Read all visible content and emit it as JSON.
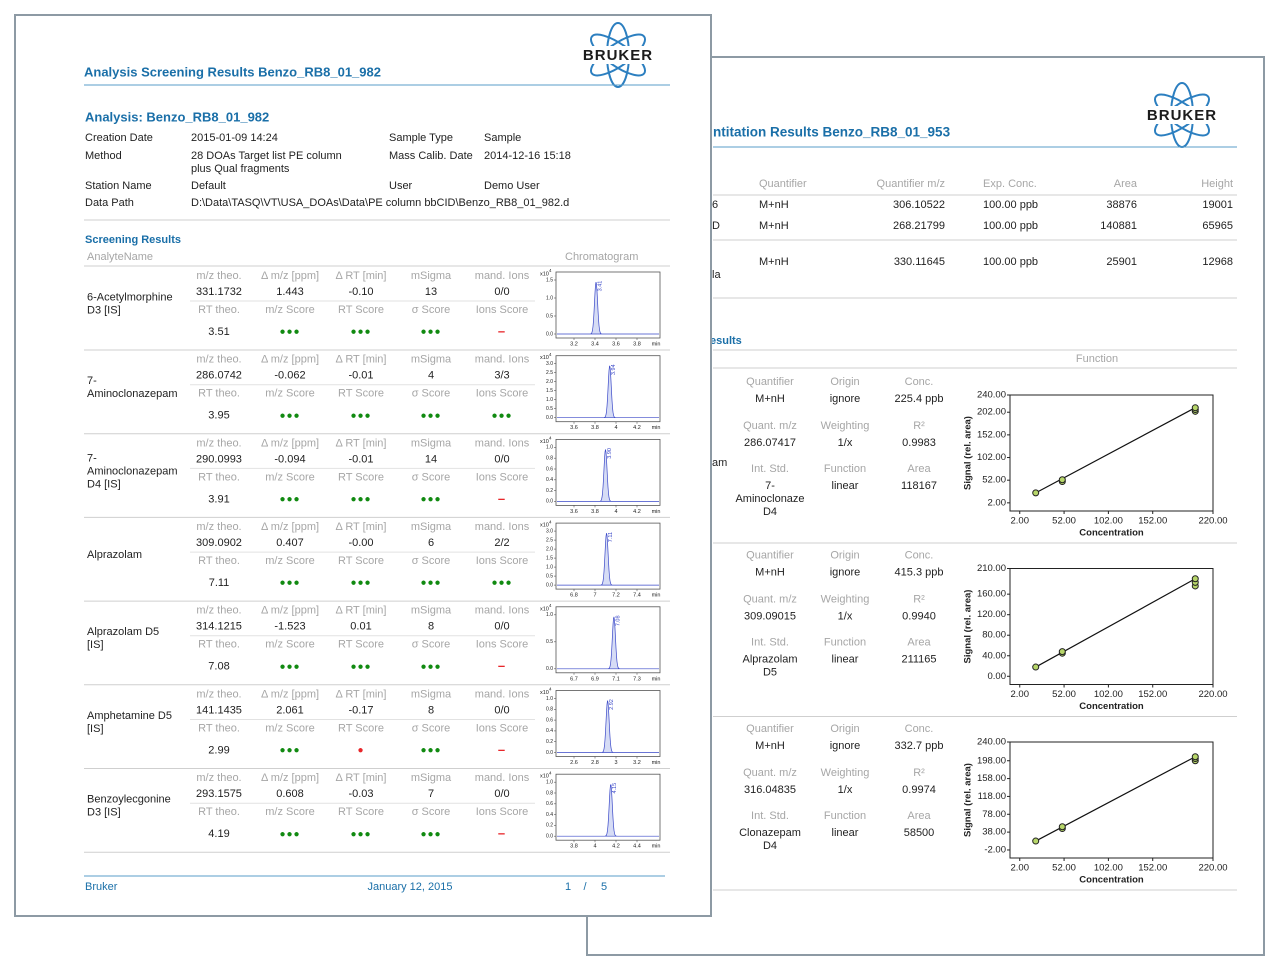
{
  "back_page": {
    "logo_text": "BRUKER",
    "title": "ntitation Results Benzo_RB8_01_953",
    "table": {
      "header": [
        "Quantifier",
        "Quantifier m/z",
        "Exp. Conc.",
        "Area",
        "Height"
      ],
      "rows": [
        {
          "name": "6",
          "cells": [
            "M+nH",
            "306.10522",
            "100.00 ppb",
            "38876",
            "19001"
          ]
        },
        {
          "name": "D",
          "cells": [
            "M+nH",
            "268.21799",
            "100.00 ppb",
            "140881",
            "65965"
          ]
        },
        {
          "name": "la",
          "cells": [
            "M+nH",
            "330.11645",
            "100.00 ppb",
            "25901",
            "12968"
          ]
        }
      ]
    },
    "section_title": "esults",
    "function_header": "Function",
    "calibrations": [
      {
        "name": "am",
        "fields": [
          [
            "Quantifier",
            "M+nH"
          ],
          [
            "Origin",
            "ignore"
          ],
          [
            "Conc.",
            "225.4 ppb"
          ],
          [
            "Quant. m/z",
            "286.07417"
          ],
          [
            "Weighting",
            "1/x"
          ],
          [
            "R²",
            "0.9983"
          ],
          [
            "Int. Std.",
            [
              "7-",
              "Aminoclonaze",
              "D4"
            ]
          ],
          [
            "Function",
            "linear"
          ],
          [
            "Area",
            "118167"
          ]
        ],
        "plot": {
          "x_label": "Concentration",
          "y_label": "Signal (rel. area)",
          "xlim": [
            -9,
            220
          ],
          "ylim": [
            -16,
            240
          ],
          "xticks": [
            {
              "value": 2,
              "label": "2.00"
            },
            {
              "value": 52,
              "label": "52.00"
            },
            {
              "value": 102,
              "label": "102.00"
            },
            {
              "value": 152,
              "label": "152.00"
            },
            {
              "value": 220,
              "label": "220.00"
            }
          ],
          "yticks": [
            {
              "value": 2,
              "label": "2.00"
            },
            {
              "value": 52,
              "label": "52.00"
            },
            {
              "value": 102,
              "label": "102.00"
            },
            {
              "value": 152,
              "label": "152.00"
            },
            {
              "value": 202,
              "label": "202.00"
            },
            {
              "value": 240,
              "label": "240.00"
            }
          ],
          "x": [
            20,
            50,
            50,
            200,
            200,
            200
          ],
          "y": [
            24,
            49,
            53,
            204,
            208,
            212
          ]
        }
      },
      {
        "fields": [
          [
            "Quantifier",
            "M+nH"
          ],
          [
            "Origin",
            "ignore"
          ],
          [
            "Conc.",
            "415.3 ppb"
          ],
          [
            "Quant. m/z",
            "309.09015"
          ],
          [
            "Weighting",
            "1/x"
          ],
          [
            "R²",
            "0.9940"
          ],
          [
            "Int. Std.",
            [
              "Alprazolam",
              "D5"
            ]
          ],
          [
            "Function",
            "linear"
          ],
          [
            "Area",
            "211165"
          ]
        ],
        "plot": {
          "x_label": "Concentration",
          "y_label": "Signal (rel. area)",
          "xlim": [
            -9,
            220
          ],
          "ylim": [
            -16,
            210
          ],
          "xticks": [
            {
              "value": 2,
              "label": "2.00"
            },
            {
              "value": 52,
              "label": "52.00"
            },
            {
              "value": 102,
              "label": "102.00"
            },
            {
              "value": 152,
              "label": "152.00"
            },
            {
              "value": 220,
              "label": "220.00"
            }
          ],
          "yticks": [
            {
              "value": 0,
              "label": "0.00"
            },
            {
              "value": 40,
              "label": "40.00"
            },
            {
              "value": 80,
              "label": "80.00"
            },
            {
              "value": 120,
              "label": "120.00"
            },
            {
              "value": 160,
              "label": "160.00"
            },
            {
              "value": 210,
              "label": "210.00"
            }
          ],
          "x": [
            20,
            50,
            50,
            200,
            200,
            200
          ],
          "y": [
            18,
            45,
            48,
            176,
            183,
            190
          ]
        }
      },
      {
        "fields": [
          [
            "Quantifier",
            "M+nH"
          ],
          [
            "Origin",
            "ignore"
          ],
          [
            "Conc.",
            "332.7 ppb"
          ],
          [
            "Quant. m/z",
            "316.04835"
          ],
          [
            "Weighting",
            "1/x"
          ],
          [
            "R²",
            "0.9974"
          ],
          [
            "Int. Std.",
            [
              "Clonazepam",
              "D4"
            ]
          ],
          [
            "Function",
            "linear"
          ],
          [
            "Area",
            "58500"
          ]
        ],
        "plot": {
          "x_label": "Concentration",
          "y_label": "Signal (rel. area)",
          "xlim": [
            -9,
            220
          ],
          "ylim": [
            -20,
            240
          ],
          "xticks": [
            {
              "value": 2,
              "label": "2.00"
            },
            {
              "value": 52,
              "label": "52.00"
            },
            {
              "value": 102,
              "label": "102.00"
            },
            {
              "value": 152,
              "label": "152.00"
            },
            {
              "value": 220,
              "label": "220.00"
            }
          ],
          "yticks": [
            {
              "value": -2,
              "label": "-2.00"
            },
            {
              "value": 38,
              "label": "38.00"
            },
            {
              "value": 78,
              "label": "78.00"
            },
            {
              "value": 118,
              "label": "118.00"
            },
            {
              "value": 158,
              "label": "158.00"
            },
            {
              "value": 198,
              "label": "198.00"
            },
            {
              "value": 240,
              "label": "240.00"
            }
          ],
          "x": [
            20,
            50,
            50,
            200,
            200,
            200
          ],
          "y": [
            18,
            46,
            50,
            198,
            203,
            207
          ]
        }
      }
    ]
  },
  "front_page": {
    "logo_text": "BRUKER",
    "title": "Analysis Screening Results Benzo_RB8_01_982",
    "analysis_title": "Analysis: Benzo_RB8_01_982",
    "info": [
      [
        "Creation Date",
        [
          "2015-01-09 14:24"
        ],
        "Sample Type",
        "Sample"
      ],
      [
        "Method",
        [
          "28 DOAs Target list PE column",
          "plus Qual fragments"
        ],
        "Mass Calib. Date",
        "2014-12-16 15:18"
      ],
      [
        "Station Name",
        [
          "Default"
        ],
        "User",
        "Demo User"
      ],
      [
        "Data Path",
        [
          "D:\\Data\\TASQ\\VT\\USA_DOAs\\Data\\PE column bbCID\\Benzo_RB8_01_982.d"
        ]
      ]
    ],
    "section_title": "Screening Results",
    "col_name": "AnalyteName",
    "col_chrom": "Chromatogram",
    "header_top": [
      "m/z theo.",
      "Δ m/z [ppm]",
      "Δ RT [min]",
      "mSigma",
      "mand. Ions"
    ],
    "header_bottom": [
      "RT theo.",
      "m/z Score",
      "RT Score",
      "σ Score",
      "Ions Score"
    ],
    "analytes": [
      {
        "name": [
          "6-Acetylmorphine",
          "D3 [IS]"
        ],
        "top": [
          "331.1732",
          "1.443",
          "-0.10",
          "13",
          "0/0"
        ],
        "rt_theo": "3.51",
        "scores": [
          {
            "symbol": "●●●",
            "color": "#118a11"
          },
          {
            "symbol": "●●●",
            "color": "#118a11"
          },
          {
            "symbol": "●●●",
            "color": "#118a11"
          },
          {
            "symbol": "–",
            "color": "#e8262a"
          }
        ],
        "chromatogram": {
          "scale": "x10",
          "exp": "4",
          "unit": "min",
          "peak": "3.41",
          "xticks": [
            "3.2",
            "3.4",
            "3.6",
            "3.8"
          ],
          "yticks": [
            "0.0",
            "0.5",
            "1.0",
            "1.5"
          ]
        }
      },
      {
        "name": [
          "7-",
          "Aminoclonazepam"
        ],
        "top": [
          "286.0742",
          "-0.062",
          "-0.01",
          "4",
          "3/3"
        ],
        "rt_theo": "3.95",
        "scores": [
          {
            "symbol": "●●●",
            "color": "#118a11"
          },
          {
            "symbol": "●●●",
            "color": "#118a11"
          },
          {
            "symbol": "●●●",
            "color": "#118a11"
          },
          {
            "symbol": "●●●",
            "color": "#118a11"
          }
        ],
        "chromatogram": {
          "scale": "x10",
          "exp": "4",
          "unit": "min",
          "peak": "3.94",
          "xticks": [
            "3.6",
            "3.8",
            "4",
            "4.2"
          ],
          "yticks": [
            "0.0",
            "0.5",
            "1.0",
            "1.5",
            "2.0",
            "2.5",
            "3.0"
          ]
        }
      },
      {
        "name": [
          "7-",
          "Aminoclonazepam",
          "D4 [IS]"
        ],
        "top": [
          "290.0993",
          "-0.094",
          "-0.01",
          "14",
          "0/0"
        ],
        "rt_theo": "3.91",
        "scores": [
          {
            "symbol": "●●●",
            "color": "#118a11"
          },
          {
            "symbol": "●●●",
            "color": "#118a11"
          },
          {
            "symbol": "●●●",
            "color": "#118a11"
          },
          {
            "symbol": "–",
            "color": "#e8262a"
          }
        ],
        "chromatogram": {
          "scale": "x10",
          "exp": "4",
          "unit": "min",
          "peak": "3.90",
          "xticks": [
            "3.6",
            "3.8",
            "4",
            "4.2"
          ],
          "yticks": [
            "0.0",
            "0.2",
            "0.4",
            "0.6",
            "0.8",
            "1.0"
          ]
        }
      },
      {
        "name": [
          "Alprazolam"
        ],
        "top": [
          "309.0902",
          "0.407",
          "-0.00",
          "6",
          "2/2"
        ],
        "rt_theo": "7.11",
        "scores": [
          {
            "symbol": "●●●",
            "color": "#118a11"
          },
          {
            "symbol": "●●●",
            "color": "#118a11"
          },
          {
            "symbol": "●●●",
            "color": "#118a11"
          },
          {
            "symbol": "●●●",
            "color": "#118a11"
          }
        ],
        "chromatogram": {
          "scale": "x10",
          "exp": "4",
          "unit": "min",
          "peak": "7.11",
          "xticks": [
            "6.8",
            "7",
            "7.2",
            "7.4"
          ],
          "yticks": [
            "0.0",
            "0.5",
            "1.0",
            "1.5",
            "2.0",
            "2.5",
            "3.0"
          ]
        }
      },
      {
        "name": [
          "Alprazolam D5",
          "[IS]"
        ],
        "top": [
          "314.1215",
          "-1.523",
          "0.01",
          "8",
          "0/0"
        ],
        "rt_theo": "7.08",
        "scores": [
          {
            "symbol": "●●●",
            "color": "#118a11"
          },
          {
            "symbol": "●●●",
            "color": "#118a11"
          },
          {
            "symbol": "●●●",
            "color": "#118a11"
          },
          {
            "symbol": "–",
            "color": "#e8262a"
          }
        ],
        "chromatogram": {
          "scale": "x10",
          "exp": "4",
          "unit": "min",
          "peak": "7.08",
          "xticks": [
            "6.7",
            "6.9",
            "7.1",
            "7.3"
          ],
          "yticks": [
            "0.0",
            "0.5",
            "1.0"
          ]
        }
      },
      {
        "name": [
          "Amphetamine D5",
          "[IS]"
        ],
        "top": [
          "141.1435",
          "2.061",
          "-0.17",
          "8",
          "0/0"
        ],
        "rt_theo": "2.99",
        "scores": [
          {
            "symbol": "●●●",
            "color": "#118a11"
          },
          {
            "symbol": "●",
            "color": "#e8262a"
          },
          {
            "symbol": "●●●",
            "color": "#118a11"
          },
          {
            "symbol": "–",
            "color": "#e8262a"
          }
        ],
        "chromatogram": {
          "scale": "x10",
          "exp": "4",
          "unit": "min",
          "peak": "2.92",
          "xticks": [
            "2.6",
            "2.8",
            "3",
            "3.2"
          ],
          "yticks": [
            "0.0",
            "0.2",
            "0.4",
            "0.6",
            "0.8",
            "1.0"
          ]
        }
      },
      {
        "name": [
          "Benzoylecgonine",
          "D3 [IS]"
        ],
        "top": [
          "293.1575",
          "0.608",
          "-0.03",
          "7",
          "0/0"
        ],
        "rt_theo": "4.19",
        "scores": [
          {
            "symbol": "●●●",
            "color": "#118a11"
          },
          {
            "symbol": "●●●",
            "color": "#118a11"
          },
          {
            "symbol": "●●●",
            "color": "#118a11"
          },
          {
            "symbol": "–",
            "color": "#e8262a"
          }
        ],
        "chromatogram": {
          "scale": "x10",
          "exp": "4",
          "unit": "min",
          "peak": "4.15",
          "xticks": [
            "3.8",
            "4",
            "4.2",
            "4.4"
          ],
          "yticks": [
            "0.0",
            "0.2",
            "0.4",
            "0.6",
            "0.8",
            "1.0"
          ]
        }
      }
    ],
    "footer": {
      "left": "Bruker",
      "date": "January 12, 2015",
      "page": "1",
      "sep": "/",
      "pages": "5"
    }
  }
}
